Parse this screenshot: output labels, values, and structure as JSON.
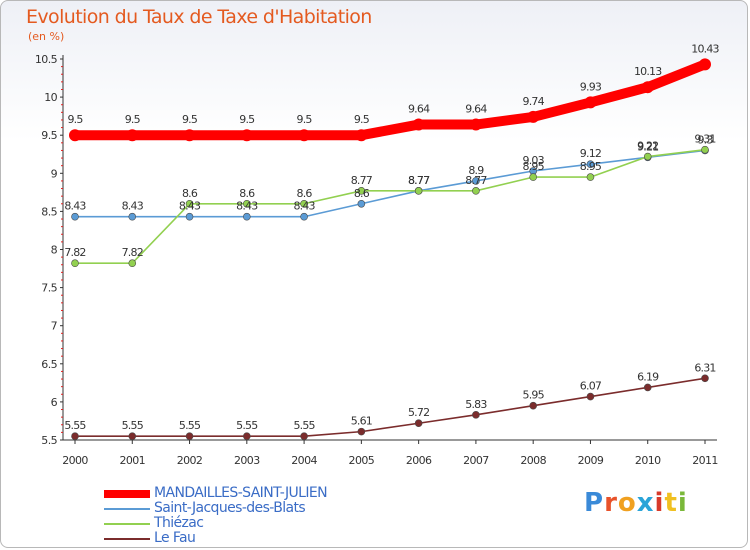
{
  "title": "Evolution du Taux de Taxe d'Habitation",
  "subtitle": "(en %)",
  "logo": {
    "text": "Proxiti",
    "colors": [
      "#3a8ad8",
      "#e8522a",
      "#f0a020",
      "#2aa4d8",
      "#d83a2a",
      "#f0c020",
      "#7ab83a"
    ]
  },
  "chart_data": {
    "type": "line",
    "x": [
      "2000",
      "2001",
      "2002",
      "2003",
      "2004",
      "2005",
      "2006",
      "2007",
      "2008",
      "2009",
      "2010",
      "2011"
    ],
    "ylim": [
      5.5,
      10.5
    ],
    "yticks": [
      "5.5",
      "6",
      "6.5",
      "7",
      "7.5",
      "8",
      "8.5",
      "9",
      "9.5",
      "10",
      "10.5"
    ],
    "grid": false,
    "legend_position": "bottom-left",
    "series": [
      {
        "name": "MANDAILLES-SAINT-JULIEN",
        "color": "#ff0000",
        "values": [
          9.5,
          9.5,
          9.5,
          9.5,
          9.5,
          9.5,
          9.64,
          9.64,
          9.74,
          9.93,
          10.13,
          10.43
        ],
        "labels": [
          "9.5",
          "9.5",
          "9.5",
          "9.5",
          "9.5",
          "9.5",
          "9.64",
          "9.64",
          "9.74",
          "9.93",
          "10.13",
          "10.43"
        ]
      },
      {
        "name": "Saint-Jacques-des-Blats",
        "color": "#5b9bd5",
        "values": [
          8.43,
          8.43,
          8.43,
          8.43,
          8.43,
          8.6,
          8.77,
          8.9,
          9.03,
          9.12,
          9.21,
          9.3
        ],
        "labels": [
          "8.43",
          "8.43",
          "8.43",
          "8.43",
          "8.43",
          "8.6",
          "8.77",
          "8.9",
          "9.03",
          "9.12",
          "9.21",
          "9.3"
        ]
      },
      {
        "name": "Thiézac",
        "color": "#92d050",
        "values": [
          7.82,
          7.82,
          8.6,
          8.6,
          8.6,
          8.77,
          8.77,
          8.77,
          8.95,
          8.95,
          9.22,
          9.31
        ],
        "labels": [
          "7.82",
          "7.82",
          "8.6",
          "8.6",
          "8.6",
          "8.77",
          "8.77",
          "8.77",
          "8.95",
          "8.95",
          "9.22",
          "9.31"
        ]
      },
      {
        "name": "Le Fau",
        "color": "#7b2c2c",
        "values": [
          5.55,
          5.55,
          5.55,
          5.55,
          5.55,
          5.61,
          5.72,
          5.83,
          5.95,
          6.07,
          6.19,
          6.31
        ],
        "labels": [
          "5.55",
          "5.55",
          "5.55",
          "5.55",
          "5.55",
          "5.61",
          "5.72",
          "5.83",
          "5.95",
          "6.07",
          "6.19",
          "6.31"
        ]
      }
    ]
  }
}
